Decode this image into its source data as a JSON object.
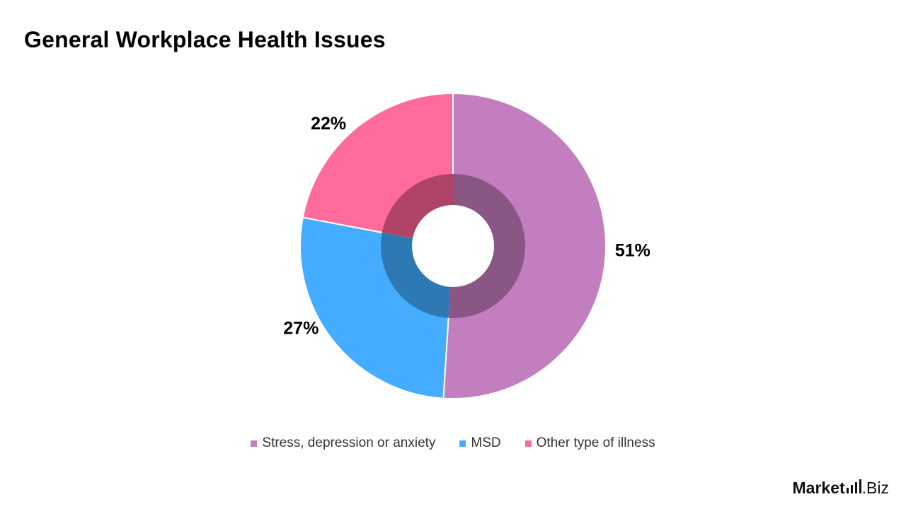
{
  "colors": {
    "stress": "#C27EBF",
    "msd": "#45ADFF",
    "other": "#FF6B9B",
    "inner_stress": "#8A5683",
    "inner_msd": "#2D79B3",
    "inner_other": "#AF4466"
  },
  "chart_data": {
    "type": "pie",
    "variant": "donut",
    "title": "General Workplace Health Issues",
    "slices": [
      {
        "label": "Stress, depression or anxiety",
        "value": 51,
        "display": "51%",
        "color": "#C27EBF"
      },
      {
        "label": "MSD",
        "value": 27,
        "display": "27%",
        "color": "#45ADFF"
      },
      {
        "label": "Other type of illness",
        "value": 22,
        "display": "22%",
        "color": "#FF6B9B"
      }
    ],
    "legend_position": "bottom",
    "start_angle": "12 o'clock",
    "direction": "clockwise"
  },
  "brand": {
    "name": "Market",
    "suffix": ".Biz"
  }
}
